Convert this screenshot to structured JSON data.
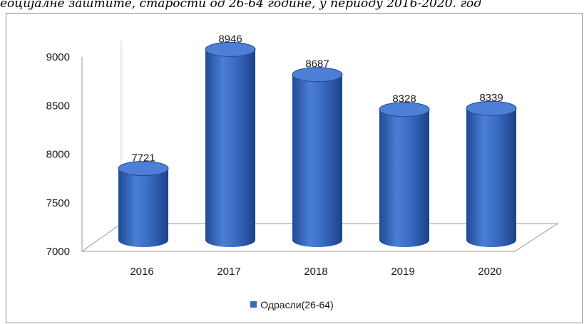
{
  "caption": "eoцujaлне заштите, старости од 26-64 године, у периоду 2016-2020. год",
  "chart_data": {
    "type": "bar",
    "categories": [
      "2016",
      "2017",
      "2018",
      "2019",
      "2020"
    ],
    "series": [
      {
        "name": "Одрасли(26-64)",
        "values": [
          7721,
          8946,
          8687,
          8328,
          8339
        ]
      }
    ],
    "ylim": [
      7000,
      9000
    ],
    "yticks": [
      "7000",
      "7500",
      "8000",
      "8500",
      "9000"
    ],
    "data_labels": [
      "7721",
      "8946",
      "8687",
      "8328",
      "8339"
    ],
    "legend_position": "bottom",
    "grid": false,
    "colors": {
      "bar": "#3a6cc4",
      "bar_dark": "#1f4a95",
      "bar_top": "#4d7fd6"
    }
  }
}
